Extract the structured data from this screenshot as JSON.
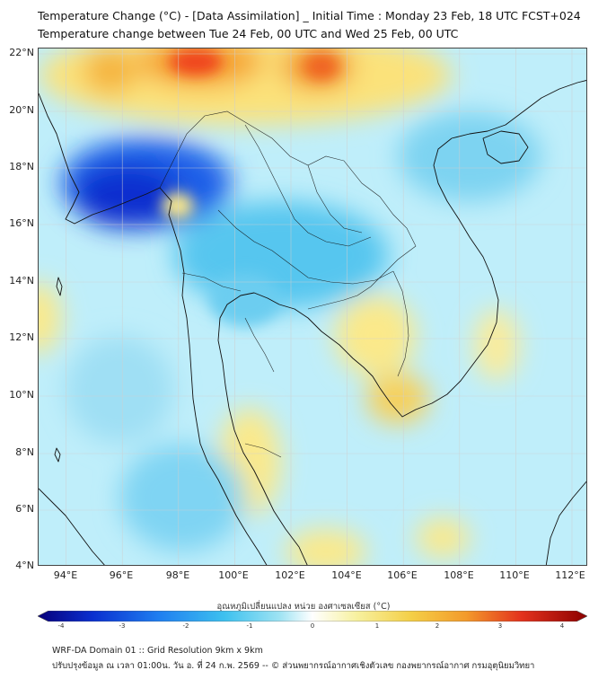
{
  "header": {
    "title_line1": "Temperature Change (°C) - [Data Assimilation] _ Initial Time : Monday 23 Feb, 18 UTC FCST+024",
    "title_line2": "Temperature change between Tue 24 Feb, 00 UTC and Wed 25 Feb, 00 UTC"
  },
  "map": {
    "lat_labels": [
      "22°N",
      "20°N",
      "18°N",
      "16°N",
      "14°N",
      "12°N",
      "10°N",
      "8°N",
      "6°N",
      "4°N"
    ],
    "lon_labels": [
      "94°E",
      "96°E",
      "98°E",
      "100°E",
      "102°E",
      "104°E",
      "106°E",
      "108°E",
      "110°E",
      "112°E"
    ],
    "colors": {
      "sea_neutral": "#bfeefa",
      "cool_strong": "#0a3fd0",
      "cool_mid": "#39b7f0",
      "warm_light": "#fbe98a",
      "warm_mid": "#f7b733",
      "warm_strong": "#f03a1c",
      "coast": "#111111",
      "grid": "#cfcfcf"
    }
  },
  "colorbar": {
    "title": "อุณหภูมิเปลี่ยนแปลง หน่วย องศาเซลเซียส (°C)",
    "tick_labels": [
      "-4",
      "-3",
      "-2",
      "-1",
      "0",
      "1",
      "2",
      "3",
      "4"
    ],
    "range": [
      -4,
      4
    ],
    "palette": [
      "#08007a",
      "#0a2fcf",
      "#1f7ef0",
      "#3dc1ef",
      "#9ee3f3",
      "#ffffff",
      "#f7f1a0",
      "#f4cf47",
      "#f39a2b",
      "#e3321d",
      "#8c0000"
    ]
  },
  "footer": {
    "line1": "WRF-DA Domain 01 :: Grid Resolution 9km x 9km",
    "line2": "ปรับปรุงข้อมูล ณ เวลา 01:00น. วัน อ. ที่ 24 ก.พ. 2569 -- © ส่วนพยากรณ์อากาศเชิงตัวเลข กองพยากรณ์อากาศ กรมอุตุนิยมวิทยา"
  }
}
